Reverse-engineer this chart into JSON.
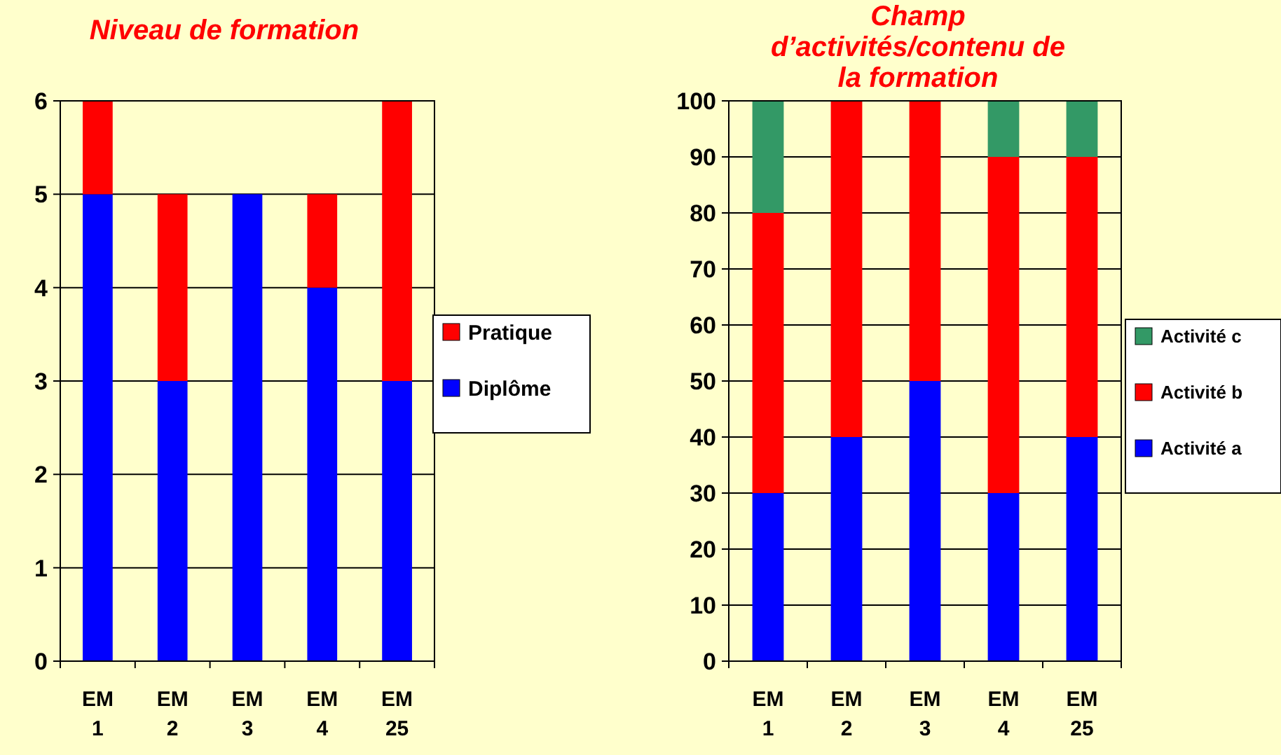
{
  "chart_data": [
    {
      "type": "bar",
      "title": "Niveau de formation",
      "stacked": true,
      "categories": [
        "EM 1",
        "EM 2",
        "EM 3",
        "EM 4",
        "EM 25"
      ],
      "ylim": [
        0,
        6
      ],
      "yticks": [
        0,
        1,
        2,
        3,
        4,
        5,
        6
      ],
      "grid": "y",
      "legend": "right",
      "series": [
        {
          "name": "Diplôme",
          "color": "#0000ff",
          "values": [
            5,
            3,
            5,
            4,
            3
          ]
        },
        {
          "name": "Pratique",
          "color": "#ff0000",
          "values": [
            1,
            2,
            0,
            1,
            3
          ]
        }
      ]
    },
    {
      "type": "bar",
      "title": "Champ d’activités/contenu de la formation",
      "stacked": true,
      "categories": [
        "EM 1",
        "EM 2",
        "EM 3",
        "EM 4",
        "EM 25"
      ],
      "ylim": [
        0,
        100
      ],
      "yticks": [
        0,
        10,
        20,
        30,
        40,
        50,
        60,
        70,
        80,
        90,
        100
      ],
      "grid": "y",
      "legend": "right",
      "series": [
        {
          "name": "Activité a",
          "color": "#0000ff",
          "values": [
            30,
            40,
            50,
            30,
            40
          ]
        },
        {
          "name": "Activité b",
          "color": "#ff0000",
          "values": [
            50,
            60,
            50,
            60,
            50
          ]
        },
        {
          "name": "Activité c",
          "color": "#339966",
          "values": [
            20,
            0,
            0,
            10,
            10
          ]
        }
      ]
    }
  ]
}
